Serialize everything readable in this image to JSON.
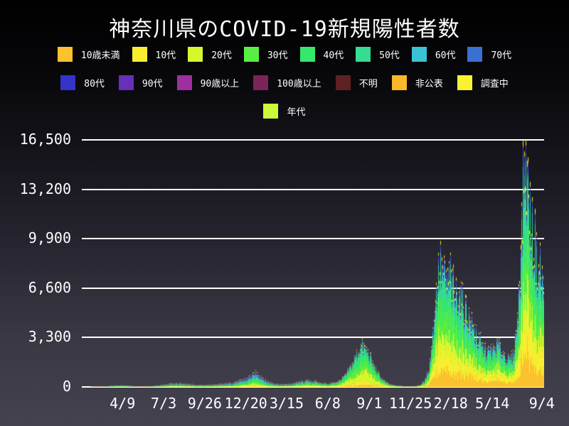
{
  "title": "神奈川県のCOVID-19新規陽性者数",
  "colors": {
    "background_top": "#000000",
    "background_bottom": "#45424f",
    "gridline": "#ffffff",
    "text": "#ffffff"
  },
  "chart_data": {
    "type": "bar",
    "subtype": "stacked-daily-bars",
    "title": "神奈川県のCOVID-19新規陽性者数",
    "xlabel": "",
    "ylabel": "",
    "ylim": [
      0,
      16500
    ],
    "grid": "horizontal-white-lines",
    "legend_position": "top",
    "y_ticks": [
      {
        "label": "0",
        "value": 0
      },
      {
        "label": "3,300",
        "value": 3300
      },
      {
        "label": "6,600",
        "value": 6600
      },
      {
        "label": "9,900",
        "value": 9900
      },
      {
        "label": "13,200",
        "value": 13200
      },
      {
        "label": "16,500",
        "value": 16500
      }
    ],
    "x_ticks": [
      {
        "label": "4/9",
        "pos": 0.088
      },
      {
        "label": "7/3",
        "pos": 0.177
      },
      {
        "label": "9/26",
        "pos": 0.266
      },
      {
        "label": "12/20",
        "pos": 0.355
      },
      {
        "label": "3/15",
        "pos": 0.443
      },
      {
        "label": "6/8",
        "pos": 0.532
      },
      {
        "label": "9/1",
        "pos": 0.622
      },
      {
        "label": "11/25",
        "pos": 0.711
      },
      {
        "label": "2/18",
        "pos": 0.798
      },
      {
        "label": "5/14",
        "pos": 0.888
      },
      {
        "label": "9/4",
        "pos": 0.995
      }
    ],
    "series": [
      {
        "label": "10歳未満",
        "color": "#fcc12e"
      },
      {
        "label": "10代",
        "color": "#f8ee30"
      },
      {
        "label": "20代",
        "color": "#d7f62e"
      },
      {
        "label": "30代",
        "color": "#59ee43"
      },
      {
        "label": "40代",
        "color": "#35e86b"
      },
      {
        "label": "50代",
        "color": "#35dc92"
      },
      {
        "label": "60代",
        "color": "#39c3d6"
      },
      {
        "label": "70代",
        "color": "#3a70d1"
      },
      {
        "label": "80代",
        "color": "#3434c8"
      },
      {
        "label": "90代",
        "color": "#6730b8"
      },
      {
        "label": "90歳以上",
        "color": "#9e2fa0"
      },
      {
        "label": "100歳以上",
        "color": "#7c2458"
      },
      {
        "label": "不明",
        "color": "#5e2122"
      },
      {
        "label": "非公表",
        "color": "#f9b827"
      },
      {
        "label": "調査中",
        "color": "#f8f32e"
      },
      {
        "label": "年代",
        "color": "#ccf93a"
      }
    ],
    "legend_rows": [
      [
        0,
        1,
        2,
        3,
        4,
        5,
        6,
        7
      ],
      [
        8,
        9,
        10,
        11,
        12,
        13,
        14
      ],
      [
        15
      ]
    ],
    "totals_envelope": [
      [
        0.0,
        0
      ],
      [
        0.015,
        2
      ],
      [
        0.03,
        8
      ],
      [
        0.05,
        35
      ],
      [
        0.07,
        70
      ],
      [
        0.088,
        95
      ],
      [
        0.105,
        55
      ],
      [
        0.125,
        30
      ],
      [
        0.15,
        45
      ],
      [
        0.165,
        80
      ],
      [
        0.177,
        120
      ],
      [
        0.195,
        220
      ],
      [
        0.212,
        255
      ],
      [
        0.23,
        185
      ],
      [
        0.248,
        120
      ],
      [
        0.266,
        115
      ],
      [
        0.285,
        140
      ],
      [
        0.305,
        185
      ],
      [
        0.325,
        270
      ],
      [
        0.342,
        400
      ],
      [
        0.355,
        560
      ],
      [
        0.368,
        780
      ],
      [
        0.378,
        950
      ],
      [
        0.388,
        760
      ],
      [
        0.398,
        420
      ],
      [
        0.412,
        250
      ],
      [
        0.428,
        170
      ],
      [
        0.443,
        155
      ],
      [
        0.458,
        230
      ],
      [
        0.472,
        330
      ],
      [
        0.488,
        410
      ],
      [
        0.503,
        360
      ],
      [
        0.518,
        250
      ],
      [
        0.532,
        195
      ],
      [
        0.545,
        270
      ],
      [
        0.558,
        420
      ],
      [
        0.572,
        800
      ],
      [
        0.585,
        1500
      ],
      [
        0.597,
        2300
      ],
      [
        0.606,
        2750
      ],
      [
        0.615,
        2500
      ],
      [
        0.622,
        2150
      ],
      [
        0.632,
        1400
      ],
      [
        0.645,
        700
      ],
      [
        0.658,
        300
      ],
      [
        0.67,
        130
      ],
      [
        0.685,
        60
      ],
      [
        0.7,
        38
      ],
      [
        0.711,
        32
      ],
      [
        0.722,
        45
      ],
      [
        0.733,
        130
      ],
      [
        0.743,
        420
      ],
      [
        0.752,
        1300
      ],
      [
        0.76,
        3600
      ],
      [
        0.768,
        6600
      ],
      [
        0.774,
        8300
      ],
      [
        0.78,
        7900
      ],
      [
        0.788,
        7000
      ],
      [
        0.798,
        7200
      ],
      [
        0.806,
        6100
      ],
      [
        0.815,
        6400
      ],
      [
        0.824,
        5700
      ],
      [
        0.835,
        4900
      ],
      [
        0.848,
        3900
      ],
      [
        0.86,
        2950
      ],
      [
        0.874,
        2400
      ],
      [
        0.888,
        2350
      ],
      [
        0.9,
        2850
      ],
      [
        0.912,
        2350
      ],
      [
        0.924,
        1750
      ],
      [
        0.934,
        2100
      ],
      [
        0.944,
        4600
      ],
      [
        0.951,
        9500
      ],
      [
        0.956,
        14000
      ],
      [
        0.959,
        16000
      ],
      [
        0.963,
        14700
      ],
      [
        0.969,
        12300
      ],
      [
        0.976,
        10200
      ],
      [
        0.984,
        8600
      ],
      [
        0.992,
        7600
      ],
      [
        1.0,
        6900
      ]
    ],
    "share_profiles": [
      {
        "pos": 0.0,
        "shares": [
          0.03,
          0.05,
          0.17,
          0.15,
          0.14,
          0.14,
          0.1,
          0.08,
          0.06,
          0.03,
          0.015,
          0.004,
          0.006,
          0.005,
          0.01,
          0.01
        ]
      },
      {
        "pos": 0.42,
        "shares": [
          0.03,
          0.05,
          0.17,
          0.15,
          0.14,
          0.14,
          0.1,
          0.08,
          0.06,
          0.03,
          0.015,
          0.004,
          0.006,
          0.005,
          0.01,
          0.01
        ]
      },
      {
        "pos": 0.56,
        "shares": [
          0.05,
          0.09,
          0.26,
          0.21,
          0.17,
          0.12,
          0.045,
          0.02,
          0.008,
          0.003,
          0.002,
          0.001,
          0.003,
          0.008,
          0.015,
          0.005
        ]
      },
      {
        "pos": 0.66,
        "shares": [
          0.05,
          0.09,
          0.26,
          0.21,
          0.17,
          0.12,
          0.045,
          0.02,
          0.008,
          0.003,
          0.002,
          0.001,
          0.003,
          0.008,
          0.015,
          0.005
        ]
      },
      {
        "pos": 0.74,
        "shares": [
          0.14,
          0.16,
          0.13,
          0.17,
          0.14,
          0.11,
          0.065,
          0.035,
          0.015,
          0.005,
          0.003,
          0.001,
          0.002,
          0.006,
          0.012,
          0.005
        ]
      },
      {
        "pos": 1.0,
        "shares": [
          0.14,
          0.16,
          0.13,
          0.17,
          0.14,
          0.11,
          0.065,
          0.035,
          0.015,
          0.005,
          0.003,
          0.001,
          0.002,
          0.006,
          0.012,
          0.005
        ]
      }
    ]
  }
}
